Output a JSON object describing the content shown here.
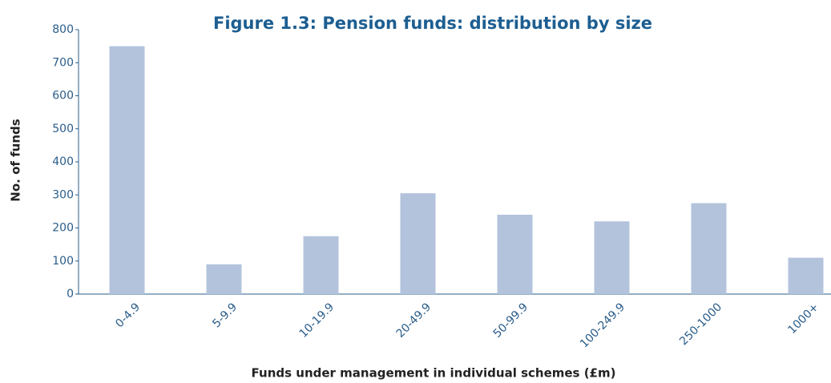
{
  "chart_data": {
    "type": "bar",
    "title": "Figure 1.3: Pension funds: distribution by size",
    "x_label": "Funds under management in individual schemes (£m)",
    "y_label": "No. of funds",
    "categories": [
      "0-4.9",
      "5-9.9",
      "10-19.9",
      "20-49.9",
      "50-99.9",
      "100-249.9",
      "250-1000",
      "1000+"
    ],
    "values": [
      750,
      90,
      175,
      305,
      240,
      220,
      275,
      110
    ],
    "color": "#b3c3dc",
    "ylim": [
      0,
      800
    ],
    "yticks": [
      0,
      100,
      200,
      300,
      400,
      500,
      600,
      700,
      800
    ],
    "grid": false
  }
}
